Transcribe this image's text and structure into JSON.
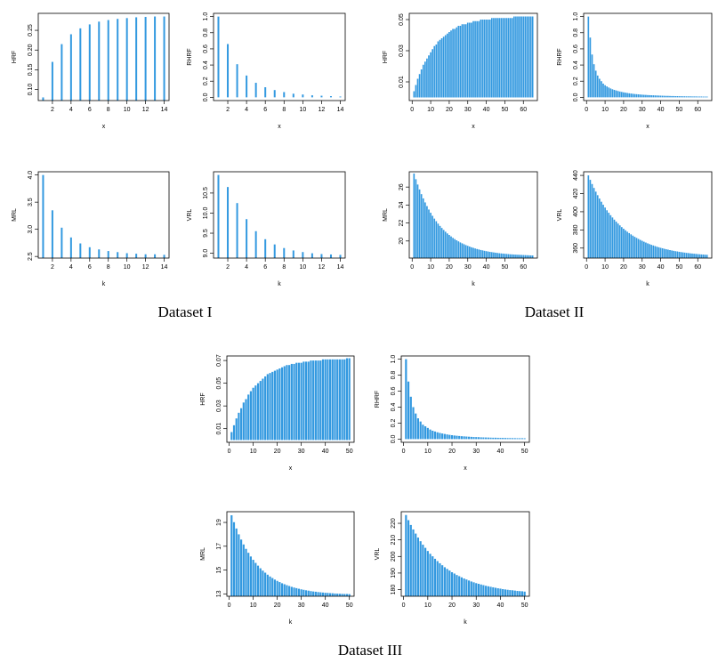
{
  "captions": [
    "Dataset I",
    "Dataset II",
    "Dataset III"
  ],
  "chart_data": [
    {
      "type": "bar",
      "xlabel": "x",
      "ylabel": "HRF",
      "color": "#3399e0",
      "x": [
        1,
        2,
        3,
        4,
        5,
        6,
        7,
        8,
        9,
        10,
        11,
        12,
        13,
        14
      ],
      "values": [
        0.08,
        0.17,
        0.215,
        0.24,
        0.255,
        0.265,
        0.272,
        0.276,
        0.279,
        0.281,
        0.283,
        0.284,
        0.285,
        0.285
      ],
      "xlim": [
        0.48,
        14.52
      ],
      "ylim": [
        0.072,
        0.293
      ],
      "xticks": [
        2,
        4,
        6,
        8,
        10,
        12,
        14
      ],
      "yticks": [
        {
          "value": 0.1,
          "label": "0.10"
        },
        0.15,
        {
          "value": 0.2,
          "label": "0.20"
        },
        0.25
      ]
    },
    {
      "type": "bar",
      "xlabel": "x",
      "ylabel": "RHRF",
      "color": "#3399e0",
      "x": [
        1,
        2,
        3,
        4,
        5,
        6,
        7,
        8,
        9,
        10,
        11,
        12,
        13,
        14
      ],
      "values": [
        1.0,
        0.66,
        0.41,
        0.27,
        0.18,
        0.125,
        0.09,
        0.065,
        0.045,
        0.035,
        0.025,
        0.02,
        0.015,
        0.01
      ],
      "xlim": [
        0.48,
        14.52
      ],
      "ylim": [
        -0.04,
        1.04
      ],
      "xticks": [
        2,
        4,
        6,
        8,
        10,
        12,
        14
      ],
      "yticks": [
        {
          "value": 0,
          "label": "0.0"
        },
        0.2,
        0.4,
        0.6,
        0.8,
        {
          "value": 1,
          "label": "1.0"
        }
      ]
    },
    {
      "type": "bar",
      "xlabel": "k",
      "ylabel": "MRL",
      "color": "#3399e0",
      "x": [
        1,
        2,
        3,
        4,
        5,
        6,
        7,
        8,
        9,
        10,
        11,
        12,
        13,
        14
      ],
      "values": [
        4.0,
        3.35,
        3.03,
        2.85,
        2.74,
        2.67,
        2.63,
        2.6,
        2.58,
        2.56,
        2.55,
        2.54,
        2.54,
        2.53
      ],
      "xlim": [
        0.48,
        14.52
      ],
      "ylim": [
        2.47,
        4.06
      ],
      "xticks": [
        2,
        4,
        6,
        8,
        10,
        12,
        14
      ],
      "yticks": [
        2.5,
        {
          "value": 3,
          "label": "3.0"
        },
        3.5,
        {
          "value": 4,
          "label": "4.0"
        }
      ]
    },
    {
      "type": "bar",
      "xlabel": "k",
      "ylabel": "VRL",
      "color": "#3399e0",
      "x": [
        1,
        2,
        3,
        4,
        5,
        6,
        7,
        8,
        9,
        10,
        11,
        12,
        13,
        14
      ],
      "values": [
        10.95,
        10.65,
        10.25,
        9.85,
        9.55,
        9.35,
        9.22,
        9.13,
        9.07,
        9.03,
        9.0,
        8.98,
        8.97,
        8.96
      ],
      "xlim": [
        0.48,
        14.52
      ],
      "ylim": [
        8.88,
        11.03
      ],
      "xticks": [
        2,
        4,
        6,
        8,
        10,
        12,
        14
      ],
      "yticks": [
        {
          "value": 9,
          "label": "9.0"
        },
        9.5,
        {
          "value": 10,
          "label": "10.0"
        },
        10.5
      ]
    },
    {
      "type": "bar",
      "xlabel": "x",
      "ylabel": "HRF",
      "color": "#3399e0",
      "x": [
        1,
        2,
        3,
        4,
        5,
        6,
        7,
        8,
        9,
        10,
        11,
        12,
        13,
        14,
        15,
        16,
        17,
        18,
        19,
        20,
        21,
        22,
        23,
        24,
        25,
        26,
        27,
        28,
        29,
        30,
        31,
        32,
        33,
        34,
        35,
        36,
        37,
        38,
        39,
        40,
        41,
        42,
        43,
        44,
        45,
        46,
        47,
        48,
        49,
        50,
        51,
        52,
        53,
        54,
        55,
        56,
        57,
        58,
        59,
        60,
        61,
        62,
        63,
        64,
        65
      ],
      "values": [
        0.004,
        0.008,
        0.012,
        0.015,
        0.018,
        0.021,
        0.023,
        0.025,
        0.027,
        0.029,
        0.031,
        0.033,
        0.034,
        0.036,
        0.037,
        0.038,
        0.039,
        0.04,
        0.041,
        0.042,
        0.043,
        0.044,
        0.044,
        0.045,
        0.046,
        0.046,
        0.047,
        0.047,
        0.047,
        0.048,
        0.048,
        0.048,
        0.049,
        0.049,
        0.049,
        0.049,
        0.05,
        0.05,
        0.05,
        0.05,
        0.05,
        0.05,
        0.051,
        0.051,
        0.051,
        0.051,
        0.051,
        0.051,
        0.051,
        0.051,
        0.051,
        0.051,
        0.051,
        0.051,
        0.052,
        0.052,
        0.052,
        0.052,
        0.052,
        0.052,
        0.052,
        0.052,
        0.052,
        0.052,
        0.052
      ],
      "xlim": [
        -1.56,
        67.56
      ],
      "ylim": [
        -0.002,
        0.054
      ],
      "xticks": [
        0,
        10,
        20,
        30,
        40,
        50,
        60
      ],
      "yticks": [
        0.01,
        0.03,
        0.05
      ]
    },
    {
      "type": "bar",
      "xlabel": "x",
      "ylabel": "RHRF",
      "color": "#3399e0",
      "x": [
        1,
        2,
        3,
        4,
        5,
        6,
        7,
        8,
        9,
        10,
        11,
        12,
        13,
        14,
        15,
        16,
        17,
        18,
        19,
        20,
        21,
        22,
        23,
        24,
        25,
        26,
        27,
        28,
        29,
        30,
        31,
        32,
        33,
        34,
        35,
        36,
        37,
        38,
        39,
        40,
        41,
        42,
        43,
        44,
        45,
        46,
        47,
        48,
        49,
        50,
        51,
        52,
        53,
        54,
        55,
        56,
        57,
        58,
        59,
        60,
        61,
        62,
        63,
        64,
        65
      ],
      "values": [
        1.0,
        0.74,
        0.53,
        0.41,
        0.33,
        0.27,
        0.23,
        0.2,
        0.17,
        0.15,
        0.135,
        0.122,
        0.11,
        0.1,
        0.092,
        0.085,
        0.078,
        0.072,
        0.067,
        0.062,
        0.058,
        0.054,
        0.05,
        0.047,
        0.044,
        0.041,
        0.039,
        0.037,
        0.035,
        0.033,
        0.031,
        0.03,
        0.028,
        0.027,
        0.026,
        0.025,
        0.024,
        0.023,
        0.022,
        0.021,
        0.02,
        0.019,
        0.018,
        0.018,
        0.017,
        0.016,
        0.016,
        0.015,
        0.015,
        0.014,
        0.014,
        0.013,
        0.013,
        0.012,
        0.012,
        0.012,
        0.011,
        0.011,
        0.011,
        0.01,
        0.01,
        0.01,
        0.009,
        0.009,
        0.009
      ],
      "xlim": [
        -1.56,
        67.56
      ],
      "ylim": [
        -0.04,
        1.04
      ],
      "xticks": [
        0,
        10,
        20,
        30,
        40,
        50,
        60
      ],
      "yticks": [
        {
          "value": 0,
          "label": "0.0"
        },
        0.2,
        0.4,
        0.6,
        0.8,
        {
          "value": 1,
          "label": "1.0"
        }
      ]
    },
    {
      "type": "bar",
      "xlabel": "k",
      "ylabel": "MRL",
      "color": "#3399e0",
      "x": [
        1,
        2,
        3,
        4,
        5,
        6,
        7,
        8,
        9,
        10,
        11,
        12,
        13,
        14,
        15,
        16,
        17,
        18,
        19,
        20,
        21,
        22,
        23,
        24,
        25,
        26,
        27,
        28,
        29,
        30,
        31,
        32,
        33,
        34,
        35,
        36,
        37,
        38,
        39,
        40,
        41,
        42,
        43,
        44,
        45,
        46,
        47,
        48,
        49,
        50,
        51,
        52,
        53,
        54,
        55,
        56,
        57,
        58,
        59,
        60,
        61,
        62,
        63,
        64,
        65
      ],
      "values": [
        27.5,
        26.87,
        26.28,
        25.73,
        25.21,
        24.74,
        24.29,
        23.88,
        23.5,
        23.14,
        22.8,
        22.49,
        22.2,
        21.93,
        21.68,
        21.45,
        21.23,
        21.03,
        20.84,
        20.67,
        20.51,
        20.35,
        20.21,
        20.08,
        19.96,
        19.84,
        19.74,
        19.64,
        19.54,
        19.46,
        19.38,
        19.3,
        19.24,
        19.17,
        19.11,
        19.06,
        19.0,
        18.96,
        18.91,
        18.87,
        18.83,
        18.79,
        18.76,
        18.73,
        18.7,
        18.67,
        18.64,
        18.62,
        18.6,
        18.58,
        18.56,
        18.54,
        18.52,
        18.51,
        18.49,
        18.48,
        18.47,
        18.46,
        18.45,
        18.44,
        18.43,
        18.42,
        18.41,
        18.4,
        18.39
      ],
      "xlim": [
        -1.56,
        67.56
      ],
      "ylim": [
        18.1,
        27.7
      ],
      "xticks": [
        0,
        10,
        20,
        30,
        40,
        50,
        60
      ],
      "yticks": [
        20,
        22,
        24,
        26
      ]
    },
    {
      "type": "bar",
      "xlabel": "k",
      "ylabel": "VRL",
      "color": "#3399e0",
      "x": [
        1,
        2,
        3,
        4,
        5,
        6,
        7,
        8,
        9,
        10,
        11,
        12,
        13,
        14,
        15,
        16,
        17,
        18,
        19,
        20,
        21,
        22,
        23,
        24,
        25,
        26,
        27,
        28,
        29,
        30,
        31,
        32,
        33,
        34,
        35,
        36,
        37,
        38,
        39,
        40,
        41,
        42,
        43,
        44,
        45,
        46,
        47,
        48,
        49,
        50,
        51,
        52,
        53,
        54,
        55,
        56,
        57,
        58,
        59,
        60,
        61,
        62,
        63,
        64,
        65
      ],
      "values": [
        440,
        435.1,
        430.5,
        426.2,
        422.1,
        418.2,
        414.5,
        411,
        407.7,
        404.6,
        401.6,
        398.9,
        396.2,
        393.7,
        391.3,
        389.1,
        387,
        385,
        383.1,
        381.3,
        379.6,
        378,
        376.5,
        375.1,
        373.7,
        372.4,
        371.2,
        370.1,
        369,
        368,
        367,
        366.1,
        365.2,
        364.4,
        363.6,
        362.9,
        362.2,
        361.5,
        360.9,
        360.3,
        359.8,
        359.2,
        358.7,
        358.3,
        357.8,
        357.4,
        357,
        356.6,
        356.3,
        355.9,
        355.6,
        355.3,
        355,
        354.7,
        354.5,
        354.2,
        354,
        353.8,
        353.6,
        353.4,
        353.2,
        353,
        352.9,
        352.7,
        352.6
      ],
      "xlim": [
        -1.56,
        67.56
      ],
      "ylim": [
        349,
        444
      ],
      "xticks": [
        0,
        10,
        20,
        30,
        40,
        50,
        60
      ],
      "yticks": [
        360,
        380,
        400,
        420,
        440
      ]
    },
    {
      "type": "bar",
      "xlabel": "x",
      "ylabel": "HRF",
      "color": "#3399e0",
      "x": [
        1,
        2,
        3,
        4,
        5,
        6,
        7,
        8,
        9,
        10,
        11,
        12,
        13,
        14,
        15,
        16,
        17,
        18,
        19,
        20,
        21,
        22,
        23,
        24,
        25,
        26,
        27,
        28,
        29,
        30,
        31,
        32,
        33,
        34,
        35,
        36,
        37,
        38,
        39,
        40,
        41,
        42,
        43,
        44,
        45,
        46,
        47,
        48,
        49,
        50
      ],
      "values": [
        0.007,
        0.013,
        0.019,
        0.024,
        0.028,
        0.033,
        0.036,
        0.04,
        0.043,
        0.046,
        0.048,
        0.05,
        0.052,
        0.054,
        0.056,
        0.058,
        0.059,
        0.06,
        0.061,
        0.062,
        0.063,
        0.064,
        0.065,
        0.066,
        0.066,
        0.067,
        0.067,
        0.068,
        0.068,
        0.068,
        0.069,
        0.069,
        0.069,
        0.07,
        0.07,
        0.07,
        0.07,
        0.07,
        0.071,
        0.071,
        0.071,
        0.071,
        0.071,
        0.071,
        0.071,
        0.071,
        0.071,
        0.071,
        0.072,
        0.072
      ],
      "xlim": [
        -0.96,
        51.96
      ],
      "ylim": [
        -0.002,
        0.074
      ],
      "xticks": [
        0,
        10,
        20,
        30,
        40,
        50
      ],
      "yticks": [
        0.01,
        0.03,
        0.05,
        0.07
      ]
    },
    {
      "type": "bar",
      "xlabel": "x",
      "ylabel": "RHRF",
      "color": "#3399e0",
      "x": [
        1,
        2,
        3,
        4,
        5,
        6,
        7,
        8,
        9,
        10,
        11,
        12,
        13,
        14,
        15,
        16,
        17,
        18,
        19,
        20,
        21,
        22,
        23,
        24,
        25,
        26,
        27,
        28,
        29,
        30,
        31,
        32,
        33,
        34,
        35,
        36,
        37,
        38,
        39,
        40,
        41,
        42,
        43,
        44,
        45,
        46,
        47,
        48,
        49,
        50
      ],
      "values": [
        1.0,
        0.72,
        0.53,
        0.4,
        0.32,
        0.26,
        0.22,
        0.18,
        0.16,
        0.14,
        0.12,
        0.105,
        0.095,
        0.085,
        0.077,
        0.07,
        0.064,
        0.058,
        0.053,
        0.049,
        0.045,
        0.042,
        0.039,
        0.036,
        0.034,
        0.032,
        0.03,
        0.028,
        0.026,
        0.025,
        0.024,
        0.022,
        0.021,
        0.02,
        0.019,
        0.018,
        0.017,
        0.017,
        0.016,
        0.015,
        0.015,
        0.014,
        0.013,
        0.013,
        0.012,
        0.012,
        0.011,
        0.011,
        0.011,
        0.01
      ],
      "xlim": [
        -0.96,
        51.96
      ],
      "ylim": [
        -0.04,
        1.04
      ],
      "xticks": [
        0,
        10,
        20,
        30,
        40,
        50
      ],
      "yticks": [
        {
          "value": 0,
          "label": "0.0"
        },
        0.2,
        0.4,
        0.6,
        0.8,
        {
          "value": 1,
          "label": "1.0"
        }
      ]
    },
    {
      "type": "bar",
      "xlabel": "k",
      "ylabel": "MRL",
      "color": "#3399e0",
      "x": [
        1,
        2,
        3,
        4,
        5,
        6,
        7,
        8,
        9,
        10,
        11,
        12,
        13,
        14,
        15,
        16,
        17,
        18,
        19,
        20,
        21,
        22,
        23,
        24,
        25,
        26,
        27,
        28,
        29,
        30,
        31,
        32,
        33,
        34,
        35,
        36,
        37,
        38,
        39,
        40,
        41,
        42,
        43,
        44,
        45,
        46,
        47,
        48,
        49,
        50
      ],
      "values": [
        19.6,
        19.02,
        18.49,
        18.0,
        17.56,
        17.15,
        16.78,
        16.45,
        16.14,
        15.86,
        15.6,
        15.37,
        15.15,
        14.95,
        14.78,
        14.61,
        14.46,
        14.33,
        14.2,
        14.09,
        13.99,
        13.89,
        13.81,
        13.73,
        13.66,
        13.59,
        13.53,
        13.48,
        13.43,
        13.38,
        13.34,
        13.3,
        13.27,
        13.23,
        13.2,
        13.18,
        13.15,
        13.13,
        13.11,
        13.09,
        13.08,
        13.06,
        13.05,
        13.03,
        13.02,
        13.01,
        13.0,
        12.99,
        12.99,
        12.98
      ],
      "xlim": [
        -0.96,
        51.96
      ],
      "ylim": [
        12.8,
        19.9
      ],
      "xticks": [
        0,
        10,
        20,
        30,
        40,
        50
      ],
      "yticks": [
        13,
        15,
        17,
        19
      ]
    },
    {
      "type": "bar",
      "xlabel": "k",
      "ylabel": "VRL",
      "color": "#3399e0",
      "x": [
        1,
        2,
        3,
        4,
        5,
        6,
        7,
        8,
        9,
        10,
        11,
        12,
        13,
        14,
        15,
        16,
        17,
        18,
        19,
        20,
        21,
        22,
        23,
        24,
        25,
        26,
        27,
        28,
        29,
        30,
        31,
        32,
        33,
        34,
        35,
        36,
        37,
        38,
        39,
        40,
        41,
        42,
        43,
        44,
        45,
        46,
        47,
        48,
        49,
        50
      ],
      "values": [
        225,
        221.9,
        219,
        216.3,
        213.8,
        211.4,
        209.2,
        207.1,
        205.2,
        203.3,
        201.6,
        200.1,
        198.6,
        197.2,
        195.9,
        194.7,
        193.5,
        192.5,
        191.5,
        190.5,
        189.7,
        188.8,
        188.1,
        187.4,
        186.7,
        186.1,
        185.5,
        184.9,
        184.4,
        183.9,
        183.5,
        183.1,
        182.7,
        182.3,
        182,
        181.7,
        181.4,
        181.1,
        180.8,
        180.6,
        180.3,
        180.1,
        179.9,
        179.7,
        179.6,
        179.4,
        179.2,
        179.1,
        179,
        178.8
      ],
      "xlim": [
        -0.96,
        51.96
      ],
      "ylim": [
        176,
        227
      ],
      "xticks": [
        0,
        10,
        20,
        30,
        40,
        50
      ],
      "yticks": [
        180,
        190,
        200,
        210,
        220
      ]
    }
  ]
}
